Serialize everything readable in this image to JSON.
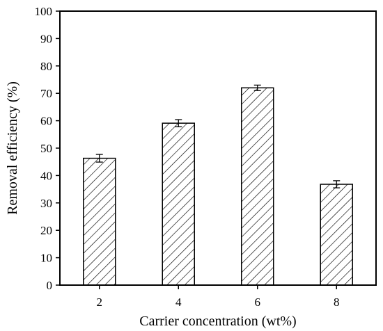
{
  "chart_data": {
    "type": "bar",
    "title": "",
    "xlabel": "Carrier concentration (wt%)",
    "ylabel": "Removal efficiency (%)",
    "categories": [
      "2",
      "4",
      "6",
      "8"
    ],
    "values": [
      46.3,
      59.1,
      72.0,
      36.8
    ],
    "errors": [
      1.4,
      1.3,
      1.0,
      1.3
    ],
    "ylim": [
      0,
      100
    ],
    "yticks": [
      "0",
      "10",
      "20",
      "30",
      "40",
      "50",
      "60",
      "70",
      "80",
      "90",
      "100"
    ],
    "bar_fill": "diagonal-hatch",
    "bar_color": "#000000",
    "grid": false,
    "legend": "none"
  }
}
